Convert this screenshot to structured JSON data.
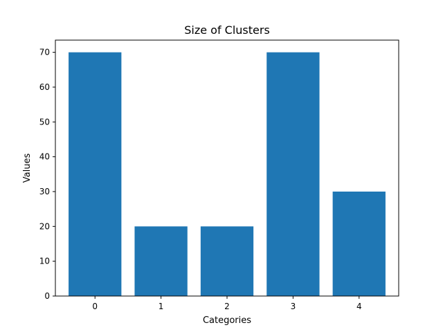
{
  "chart_data": {
    "type": "bar",
    "title": "Size of Clusters",
    "xlabel": "Categories",
    "ylabel": "Values",
    "categories": [
      "0",
      "1",
      "2",
      "3",
      "4"
    ],
    "values": [
      70,
      20,
      20,
      70,
      30
    ],
    "ylim": [
      0,
      73.5
    ],
    "yticks": [
      0,
      10,
      20,
      30,
      40,
      50,
      60,
      70
    ],
    "grid": false,
    "bar_color": "#1f77b4"
  }
}
